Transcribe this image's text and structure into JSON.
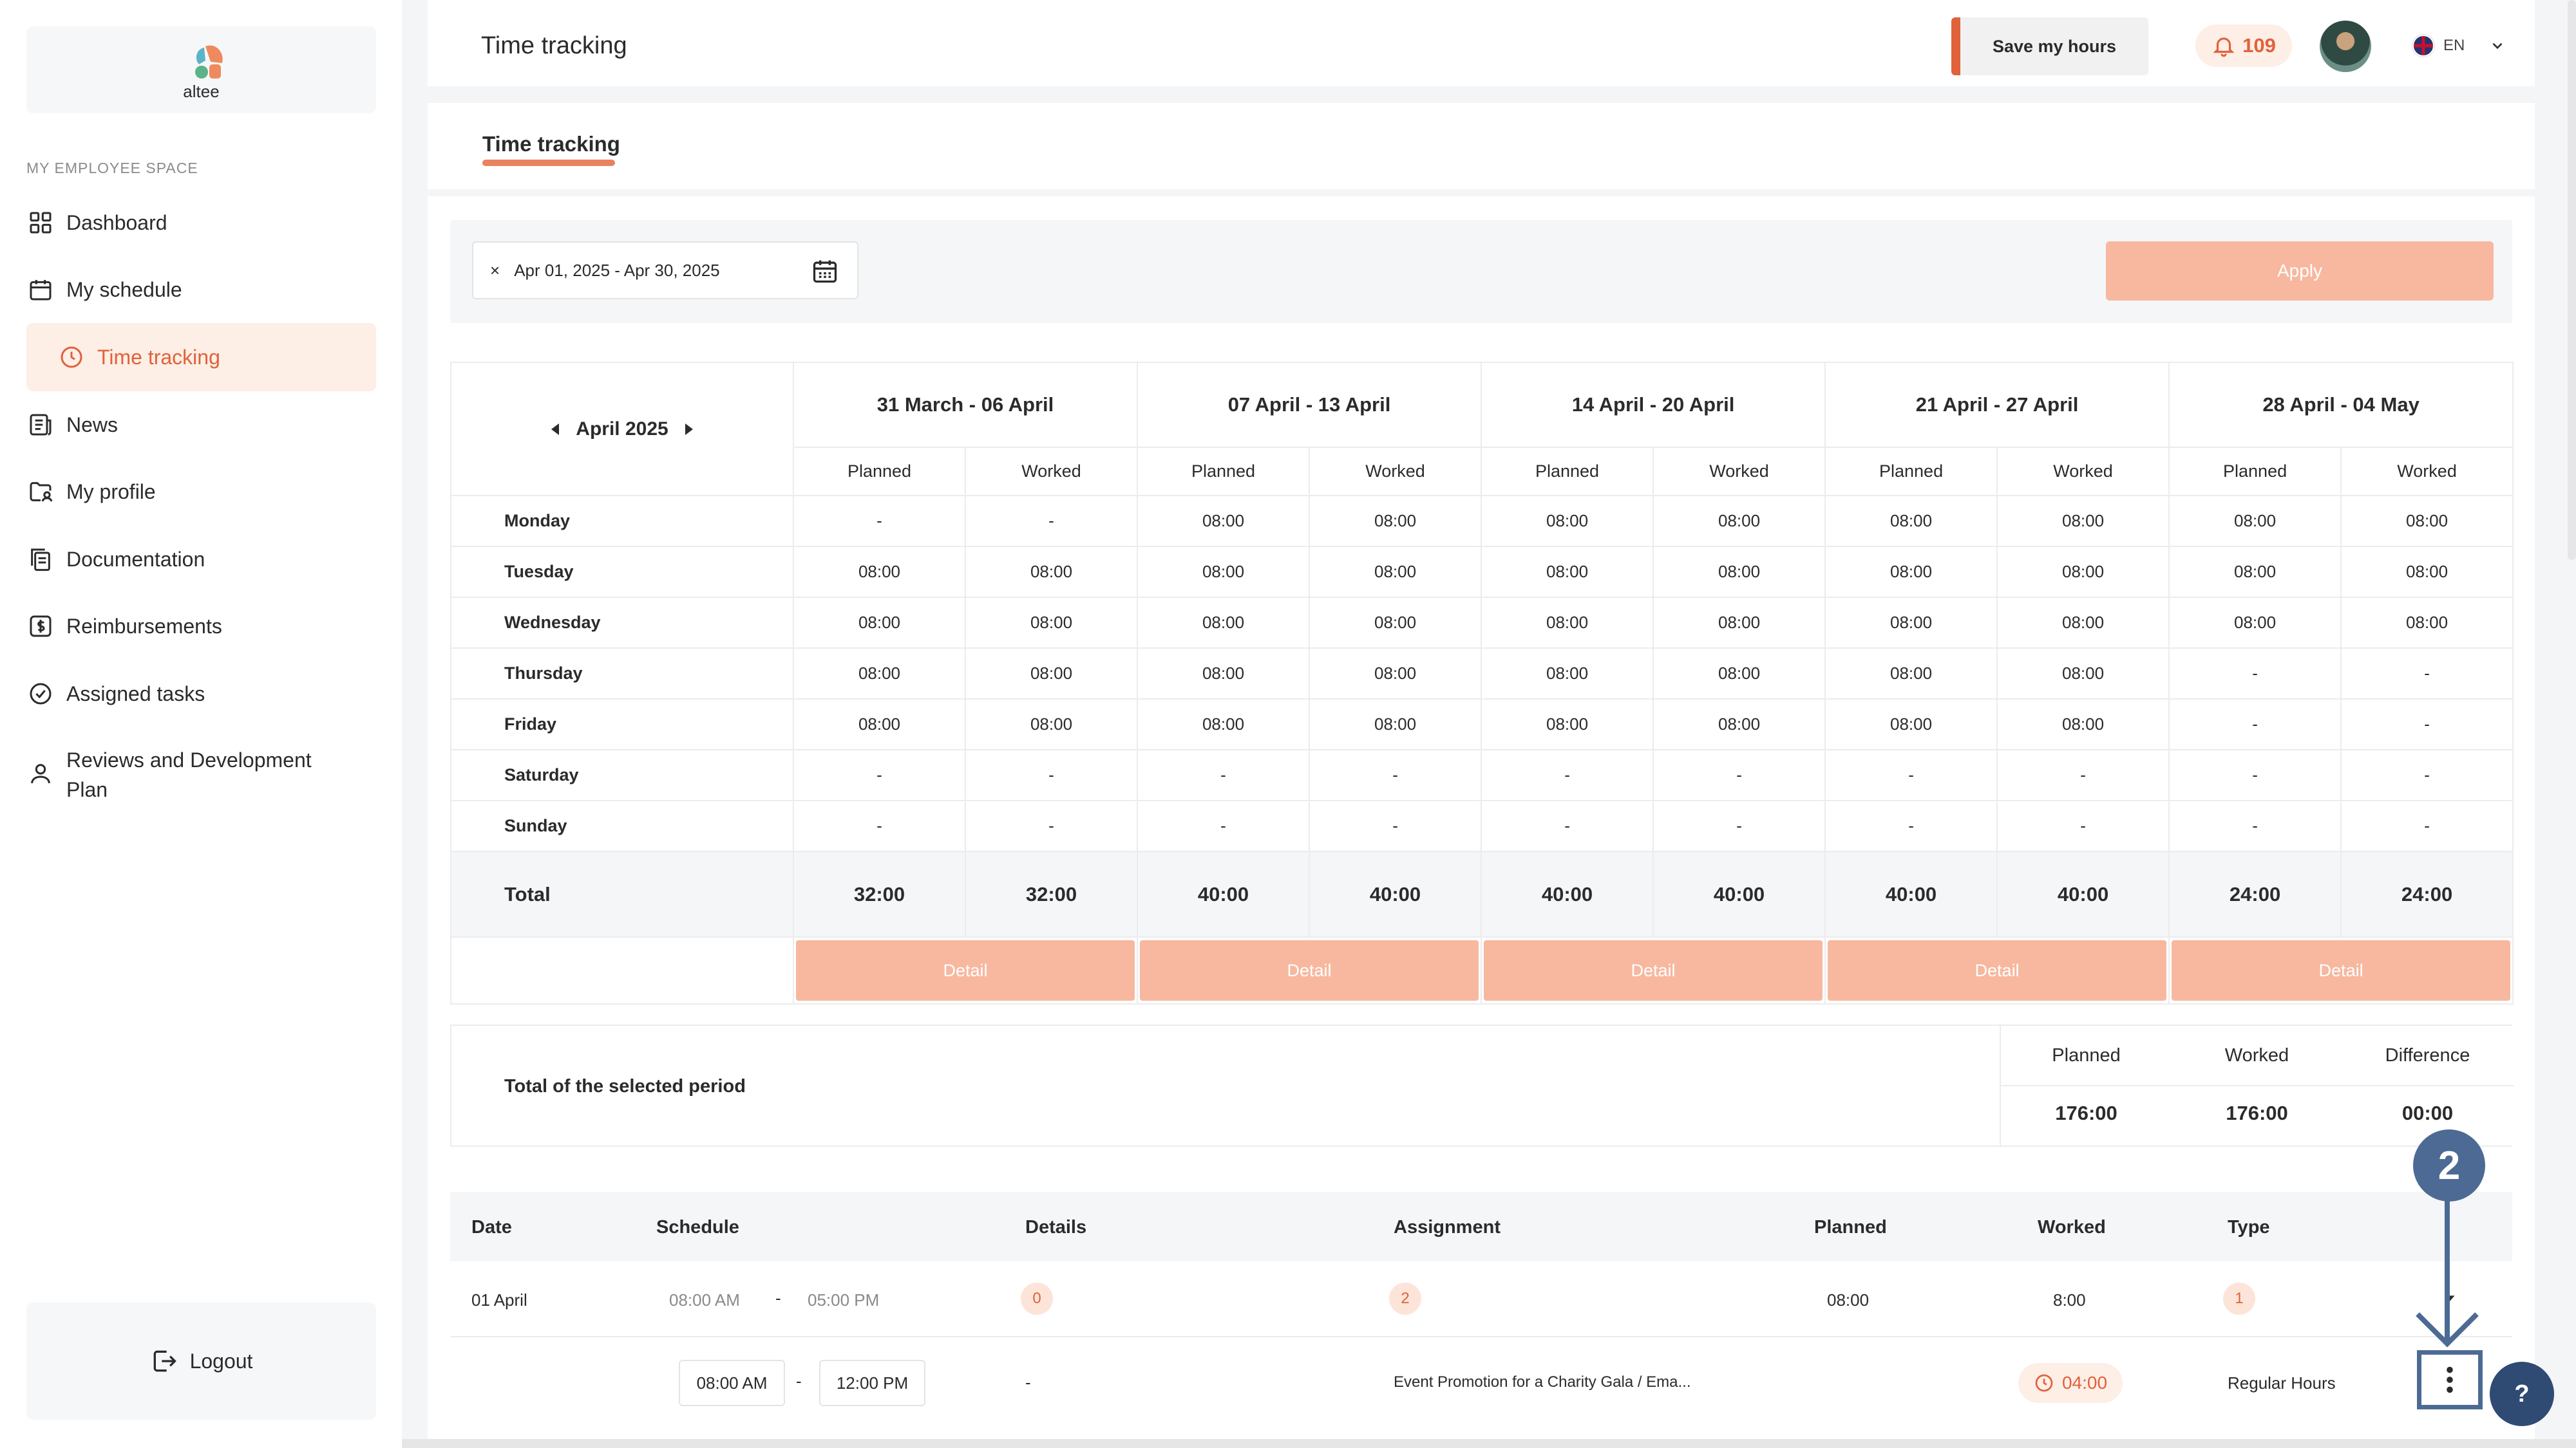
{
  "brand": {
    "name": "altee",
    "colors": {
      "accent": "#e0623b",
      "accent_soft": "#f7b89f",
      "annotation": "#4d6a94"
    }
  },
  "sidebar": {
    "section_label": "MY EMPLOYEE SPACE",
    "items": [
      {
        "label": "Dashboard",
        "icon": "grid-icon"
      },
      {
        "label": "My schedule",
        "icon": "calendar-icon"
      },
      {
        "label": "Time tracking",
        "icon": "clock-icon",
        "active": true
      },
      {
        "label": "News",
        "icon": "newspaper-icon"
      },
      {
        "label": "My profile",
        "icon": "folder-user-icon"
      },
      {
        "label": "Documentation",
        "icon": "documents-icon"
      },
      {
        "label": "Reimbursements",
        "icon": "dollar-icon"
      },
      {
        "label": "Assigned tasks",
        "icon": "check-circle-icon"
      },
      {
        "label": "Reviews and Development Plan",
        "icon": "user-icon"
      }
    ],
    "logout_label": "Logout"
  },
  "header": {
    "title": "Time tracking",
    "save_label": "Save my hours",
    "notification_count": "109",
    "language": "EN"
  },
  "tabs": [
    {
      "label": "Time tracking",
      "active": true
    }
  ],
  "filter": {
    "date_range": "Apr 01, 2025 - Apr 30, 2025",
    "clear_symbol": "×",
    "apply_label": "Apply"
  },
  "weekly": {
    "month_label": "April 2025",
    "weeks": [
      "31 March - 06 April",
      "07 April - 13 April",
      "14 April - 20 April",
      "21 April - 27 April",
      "28 April - 04 May"
    ],
    "sub_headers": {
      "planned": "Planned",
      "worked": "Worked"
    },
    "days": [
      {
        "name": "Monday",
        "values": [
          "-",
          "-",
          "08:00",
          "08:00",
          "08:00",
          "08:00",
          "08:00",
          "08:00",
          "08:00",
          "08:00"
        ]
      },
      {
        "name": "Tuesday",
        "values": [
          "08:00",
          "08:00",
          "08:00",
          "08:00",
          "08:00",
          "08:00",
          "08:00",
          "08:00",
          "08:00",
          "08:00"
        ]
      },
      {
        "name": "Wednesday",
        "values": [
          "08:00",
          "08:00",
          "08:00",
          "08:00",
          "08:00",
          "08:00",
          "08:00",
          "08:00",
          "08:00",
          "08:00"
        ]
      },
      {
        "name": "Thursday",
        "values": [
          "08:00",
          "08:00",
          "08:00",
          "08:00",
          "08:00",
          "08:00",
          "08:00",
          "08:00",
          "-",
          "-"
        ]
      },
      {
        "name": "Friday",
        "values": [
          "08:00",
          "08:00",
          "08:00",
          "08:00",
          "08:00",
          "08:00",
          "08:00",
          "08:00",
          "-",
          "-"
        ]
      },
      {
        "name": "Saturday",
        "values": [
          "-",
          "-",
          "-",
          "-",
          "-",
          "-",
          "-",
          "-",
          "-",
          "-"
        ]
      },
      {
        "name": "Sunday",
        "values": [
          "-",
          "-",
          "-",
          "-",
          "-",
          "-",
          "-",
          "-",
          "-",
          "-"
        ]
      }
    ],
    "total_label": "Total",
    "totals": [
      "32:00",
      "32:00",
      "40:00",
      "40:00",
      "40:00",
      "40:00",
      "40:00",
      "40:00",
      "24:00",
      "24:00"
    ],
    "detail_label": "Detail"
  },
  "period": {
    "label": "Total of the selected period",
    "planned_label": "Planned",
    "worked_label": "Worked",
    "difference_label": "Difference",
    "planned": "176:00",
    "worked": "176:00",
    "difference": "00:00"
  },
  "entries": {
    "headers": {
      "date": "Date",
      "schedule": "Schedule",
      "details": "Details",
      "assignment": "Assignment",
      "planned": "Planned",
      "worked": "Worked",
      "type": "Type"
    },
    "day_row": {
      "date": "01 April",
      "start": "08:00 AM",
      "end": "05:00 PM",
      "details_count": "0",
      "assignment_count": "2",
      "planned": "08:00",
      "worked": "8:00",
      "type_count": "1"
    },
    "sub_row": {
      "start": "08:00 AM",
      "end": "12:00 PM",
      "details": "-",
      "assignment": "Event Promotion for a Charity Gala / Ema...",
      "worked": "04:00",
      "type": "Regular Hours"
    },
    "dash": "-"
  },
  "annotation": {
    "step": "2"
  },
  "help_label": "?"
}
